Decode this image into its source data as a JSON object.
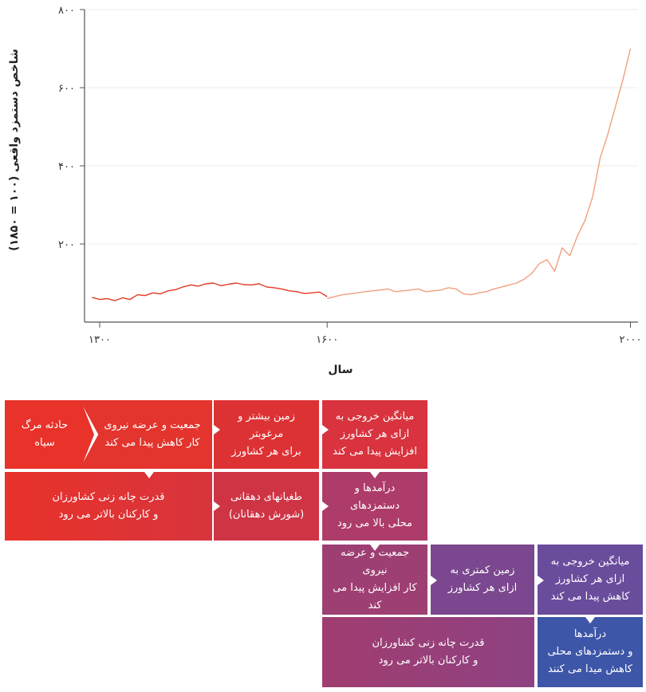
{
  "chart_data": {
    "type": "line",
    "xlabel": "سال",
    "ylabel": "شاخص دستمزد واقعی (۱۰۰ = ۱۸۵۰)",
    "xlim": [
      1280,
      2010
    ],
    "ylim": [
      0,
      800
    ],
    "x_ticks": [
      {
        "value": 1300,
        "label": "۱۳۰۰"
      },
      {
        "value": 1600,
        "label": "۱۶۰۰"
      },
      {
        "value": 2000,
        "label": "۲۰۰۰"
      }
    ],
    "y_ticks": [
      {
        "value": 200,
        "label": "۲۰۰"
      },
      {
        "value": 400,
        "label": "۴۰۰"
      },
      {
        "value": 600,
        "label": "۶۰۰"
      },
      {
        "value": 800,
        "label": "۸۰۰"
      }
    ],
    "colors": {
      "before_1600": "#e03a24",
      "after_1600": "#f0a07e"
    },
    "series": [
      {
        "x": [
          1290,
          1300,
          1310,
          1320,
          1330,
          1340,
          1350,
          1360,
          1370,
          1380,
          1390,
          1400,
          1410,
          1420,
          1430,
          1440,
          1450,
          1460,
          1470,
          1480,
          1490,
          1500,
          1510,
          1520,
          1530,
          1540,
          1550,
          1560,
          1570,
          1580,
          1590,
          1600
        ],
        "y": [
          63,
          58,
          60,
          55,
          62,
          58,
          70,
          68,
          75,
          72,
          80,
          83,
          90,
          95,
          92,
          98,
          100,
          93,
          97,
          100,
          96,
          95,
          98,
          90,
          88,
          85,
          80,
          78,
          73,
          75,
          77,
          65
        ]
      },
      {
        "x": [
          1600,
          1610,
          1620,
          1630,
          1640,
          1650,
          1660,
          1670,
          1680,
          1690,
          1700,
          1710,
          1720,
          1730,
          1740,
          1750,
          1760,
          1770,
          1780,
          1790,
          1800,
          1810,
          1820,
          1830,
          1840,
          1850,
          1860,
          1870,
          1880,
          1890,
          1900,
          1910,
          1920,
          1930,
          1940,
          1950,
          1960,
          1970,
          1980,
          1990,
          2000
        ],
        "y": [
          60,
          65,
          70,
          72,
          75,
          78,
          80,
          82,
          85,
          78,
          80,
          82,
          85,
          78,
          80,
          82,
          88,
          85,
          72,
          70,
          75,
          78,
          85,
          90,
          95,
          100,
          110,
          125,
          150,
          160,
          130,
          190,
          170,
          220,
          260,
          320,
          420,
          480,
          550,
          620,
          700
        ]
      }
    ]
  },
  "flow": {
    "row1": [
      "حادثه مرگ سیاه",
      "جمعیت و عرضه نیروی\nکار کاهش پیدا می کند",
      "زمین بیشتر و مرغوبتر\nبرای هر کشاورز",
      "میانگین خروجی به\nازای هر کشاورز\nافزایش پیدا می کند"
    ],
    "row2": [
      "قدرت چانه زنی کشاورزان\nو کارکنان بالاتر می رود",
      "طغیانهای دهقانی\n(شورش دهقانان)",
      "درآمدها و دستمزدهای\nمحلی بالا می رود"
    ],
    "row3": [
      "جمعیت و عرضه نیروی\nکار افزایش پیدا می کند",
      "زمین کمتری به\nازای هر کشاورز",
      "میانگین خروجی به\nازای هر کشاورز\nکاهش پیدا می کند"
    ],
    "row4": [
      "قدرت چانه زنی کشاورزان\nو کارکنان بالاتر می رود",
      "درآمدها\nو دستمزدهای محلی\nکاهش میدا می کنند"
    ]
  }
}
